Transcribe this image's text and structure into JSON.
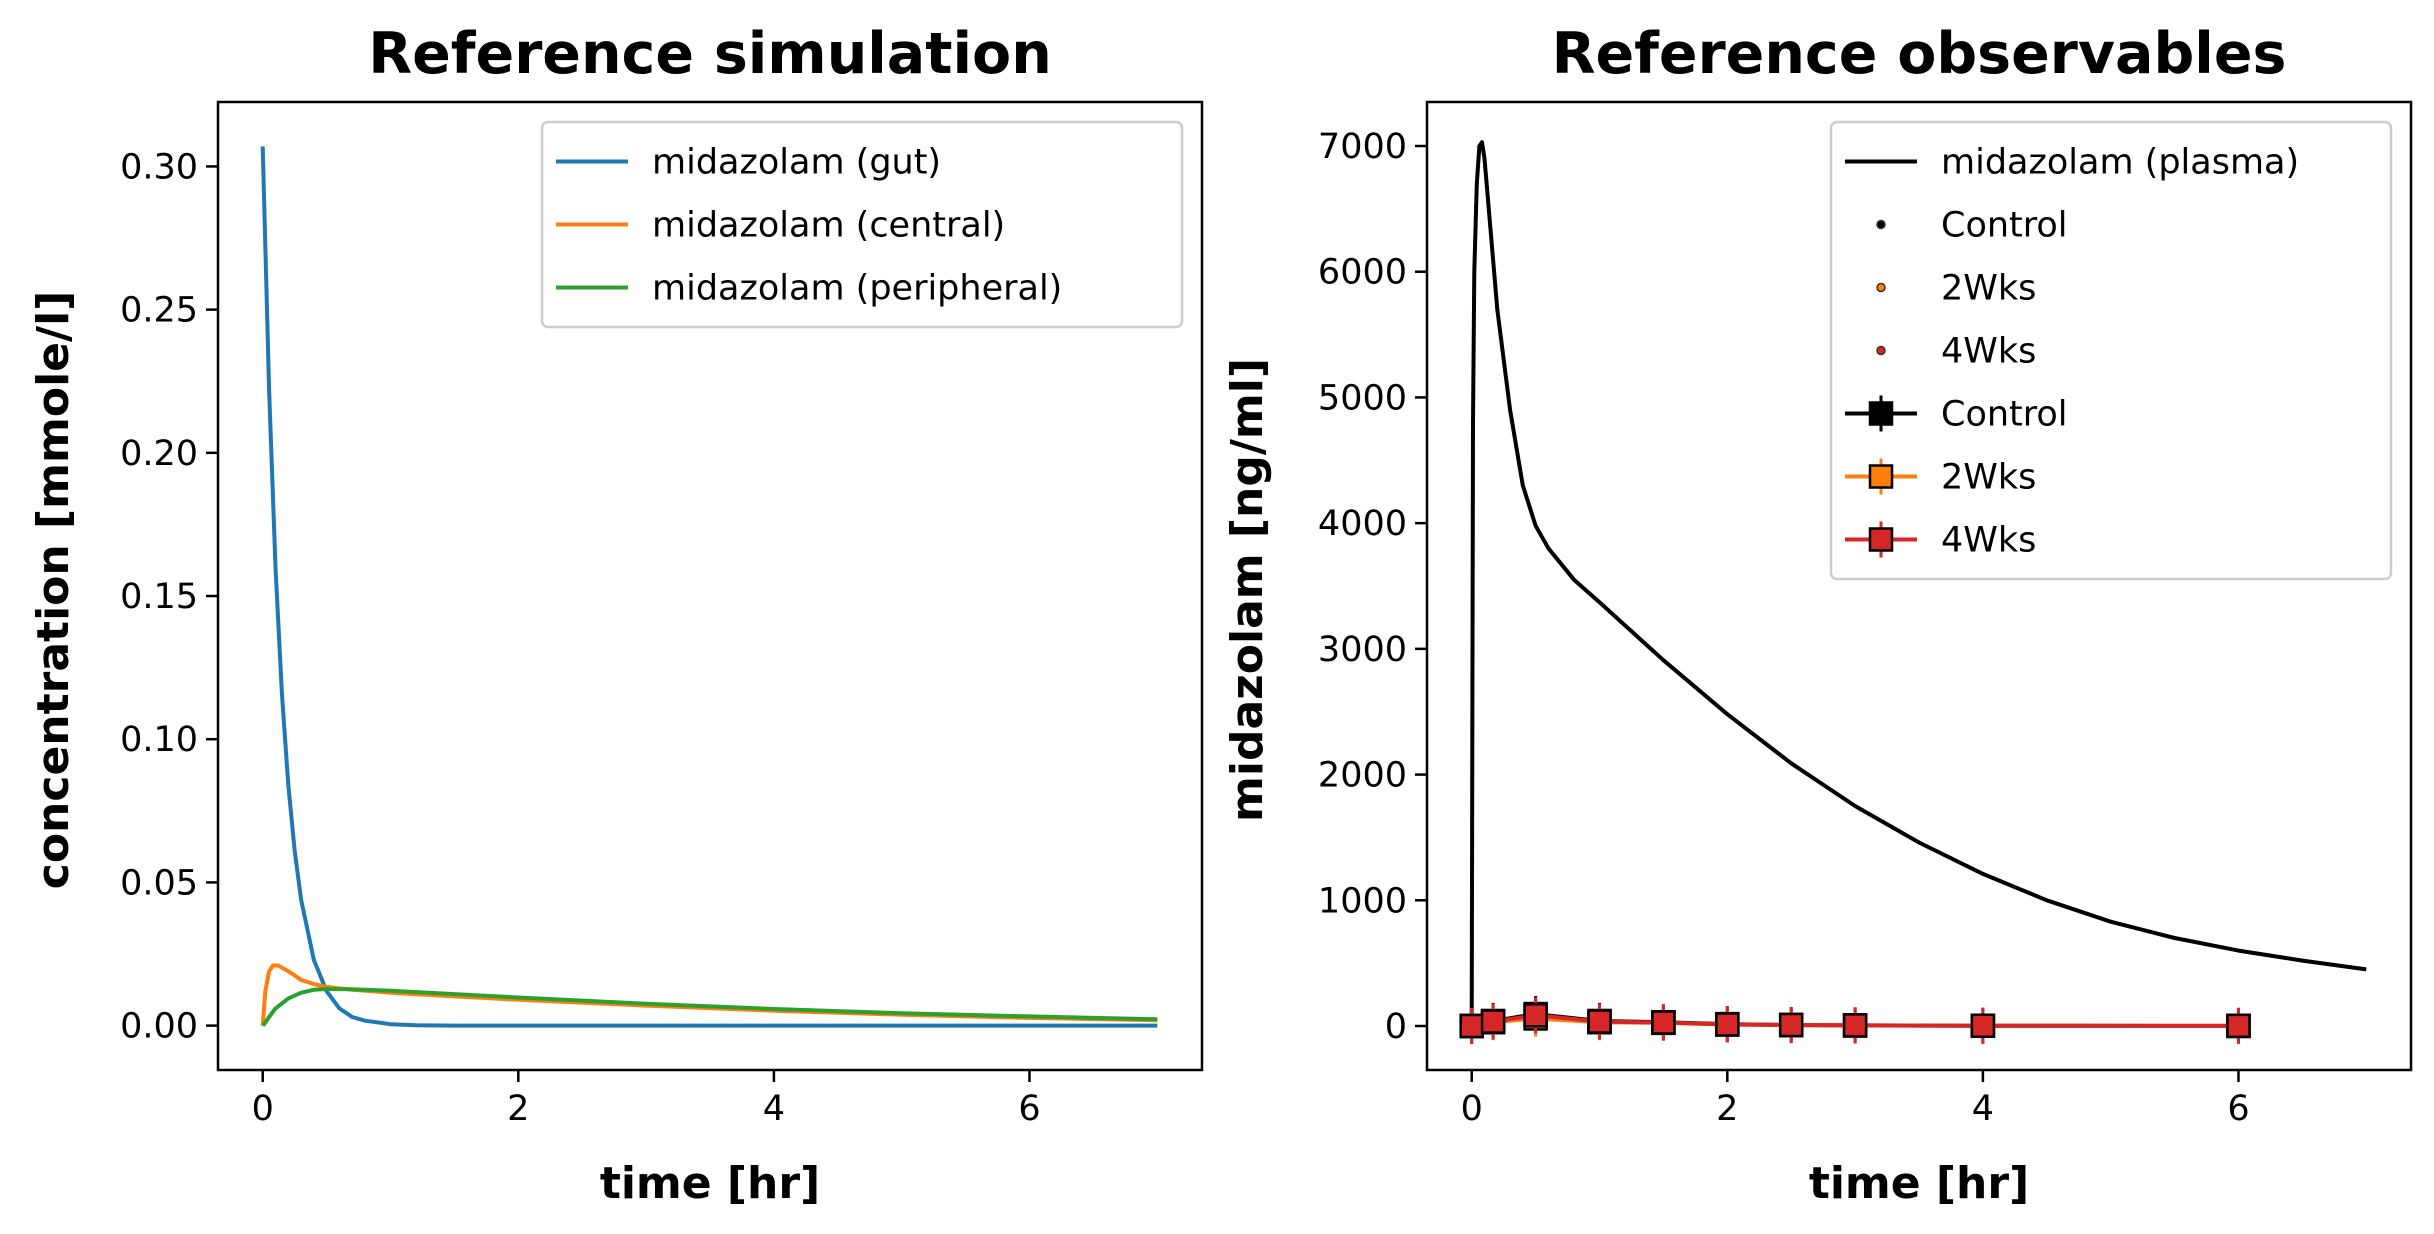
{
  "chart_data": [
    {
      "type": "line",
      "title": "Reference simulation",
      "xlabel": "time [hr]",
      "ylabel": "concentration [mmole/l]",
      "xlim": [
        -0.35,
        7.35
      ],
      "ylim": [
        -0.0155,
        0.3225
      ],
      "xticks": [
        0,
        2,
        4,
        6
      ],
      "yticks": [
        0.0,
        0.05,
        0.1,
        0.15,
        0.2,
        0.25,
        0.3
      ],
      "ytick_labels": [
        "0.00",
        "0.05",
        "0.10",
        "0.15",
        "0.20",
        "0.25",
        "0.30"
      ],
      "grid": false,
      "legend": "upper right",
      "series": [
        {
          "name": "midazolam (gut)",
          "color": "#1f77b4",
          "x": [
            0,
            0.05,
            0.1,
            0.15,
            0.2,
            0.25,
            0.3,
            0.4,
            0.5,
            0.6,
            0.7,
            0.8,
            1.0,
            1.2,
            1.5,
            2,
            3,
            4,
            5,
            6,
            7
          ],
          "y": [
            0.307,
            0.222,
            0.16,
            0.116,
            0.084,
            0.061,
            0.044,
            0.023,
            0.012,
            0.006,
            0.003,
            0.0017,
            0.0005,
            0.0001,
            0,
            0,
            0,
            0,
            0,
            0,
            0
          ]
        },
        {
          "name": "midazolam (central)",
          "color": "#ff7f0e",
          "x": [
            0,
            0.02,
            0.05,
            0.08,
            0.12,
            0.2,
            0.3,
            0.4,
            0.5,
            0.7,
            1.0,
            1.5,
            2,
            3,
            4,
            5,
            6,
            7
          ],
          "y": [
            0,
            0.012,
            0.019,
            0.021,
            0.021,
            0.019,
            0.016,
            0.0145,
            0.0135,
            0.0125,
            0.0115,
            0.0102,
            0.009,
            0.007,
            0.0052,
            0.0038,
            0.0027,
            0.0019
          ]
        },
        {
          "name": "midazolam (peripheral)",
          "color": "#2ca02c",
          "x": [
            0,
            0.02,
            0.05,
            0.1,
            0.2,
            0.3,
            0.4,
            0.5,
            0.7,
            1.0,
            1.5,
            2,
            3,
            4,
            5,
            6,
            7
          ],
          "y": [
            0,
            0.001,
            0.003,
            0.006,
            0.0095,
            0.0115,
            0.0125,
            0.0128,
            0.0127,
            0.0122,
            0.011,
            0.0098,
            0.0076,
            0.0058,
            0.0043,
            0.0032,
            0.0022
          ]
        }
      ]
    },
    {
      "type": "line",
      "title": "Reference observables",
      "xlabel": "time [hr]",
      "ylabel": "midazolam [ng/ml]",
      "xlim": [
        -0.35,
        7.35
      ],
      "ylim": [
        -350,
        7350
      ],
      "xticks": [
        0,
        2,
        4,
        6
      ],
      "yticks": [
        0,
        1000,
        2000,
        3000,
        4000,
        5000,
        6000,
        7000
      ],
      "ytick_labels": [
        "0",
        "1000",
        "2000",
        "3000",
        "4000",
        "5000",
        "6000",
        "7000"
      ],
      "grid": false,
      "legend": "upper right",
      "series": [
        {
          "name": "midazolam (plasma)",
          "color": "#000000",
          "style": "line",
          "x": [
            0,
            0.01,
            0.02,
            0.04,
            0.06,
            0.08,
            0.1,
            0.15,
            0.2,
            0.3,
            0.4,
            0.5,
            0.6,
            0.8,
            1.0,
            1.5,
            2,
            2.5,
            3,
            3.5,
            4,
            4.5,
            5,
            5.5,
            6,
            6.5,
            7
          ],
          "y": [
            0,
            4800,
            6000,
            6700,
            7000,
            7030,
            6900,
            6300,
            5700,
            4900,
            4300,
            3980,
            3800,
            3550,
            3370,
            2910,
            2480,
            2090,
            1750,
            1460,
            1210,
            1000,
            830,
            700,
            600,
            520,
            450
          ]
        },
        {
          "name": "Control",
          "color": "#000000",
          "style": "dot",
          "x": [
            0,
            0.167,
            0.5,
            1,
            1.5,
            2,
            2.5,
            3,
            4,
            6
          ],
          "y": [
            0,
            40,
            95,
            40,
            30,
            15,
            8,
            5,
            2,
            1
          ]
        },
        {
          "name": "2Wks",
          "color": "#ff7f0e",
          "style": "dot",
          "x": [
            0,
            0.167,
            0.5,
            1,
            1.5,
            2,
            2.5,
            3,
            4,
            6
          ],
          "y": [
            0,
            30,
            60,
            30,
            25,
            12,
            7,
            4,
            2,
            1
          ]
        },
        {
          "name": "4Wks",
          "color": "#d62728",
          "style": "dot",
          "x": [
            0,
            0.167,
            0.5,
            1,
            1.5,
            2,
            2.5,
            3,
            4,
            6
          ],
          "y": [
            0,
            35,
            85,
            35,
            28,
            12,
            8,
            5,
            2,
            1
          ]
        },
        {
          "name": "Control",
          "color": "#000000",
          "style": "errorbar",
          "x": [
            0,
            0.167,
            0.5,
            1,
            1.5,
            2,
            2.5,
            3,
            4,
            6
          ],
          "y": [
            0,
            40,
            95,
            40,
            30,
            15,
            8,
            5,
            2,
            1
          ]
        },
        {
          "name": "2Wks",
          "color": "#ff7f0e",
          "style": "errorbar",
          "x": [
            0,
            0.167,
            0.5,
            1,
            1.5,
            2,
            2.5,
            3,
            4,
            6
          ],
          "y": [
            0,
            30,
            60,
            30,
            25,
            12,
            7,
            4,
            2,
            1
          ]
        },
        {
          "name": "4Wks",
          "color": "#d62728",
          "style": "errorbar",
          "x": [
            0,
            0.167,
            0.5,
            1,
            1.5,
            2,
            2.5,
            3,
            4,
            6
          ],
          "y": [
            0,
            35,
            85,
            35,
            28,
            12,
            8,
            5,
            2,
            1
          ]
        }
      ]
    }
  ]
}
